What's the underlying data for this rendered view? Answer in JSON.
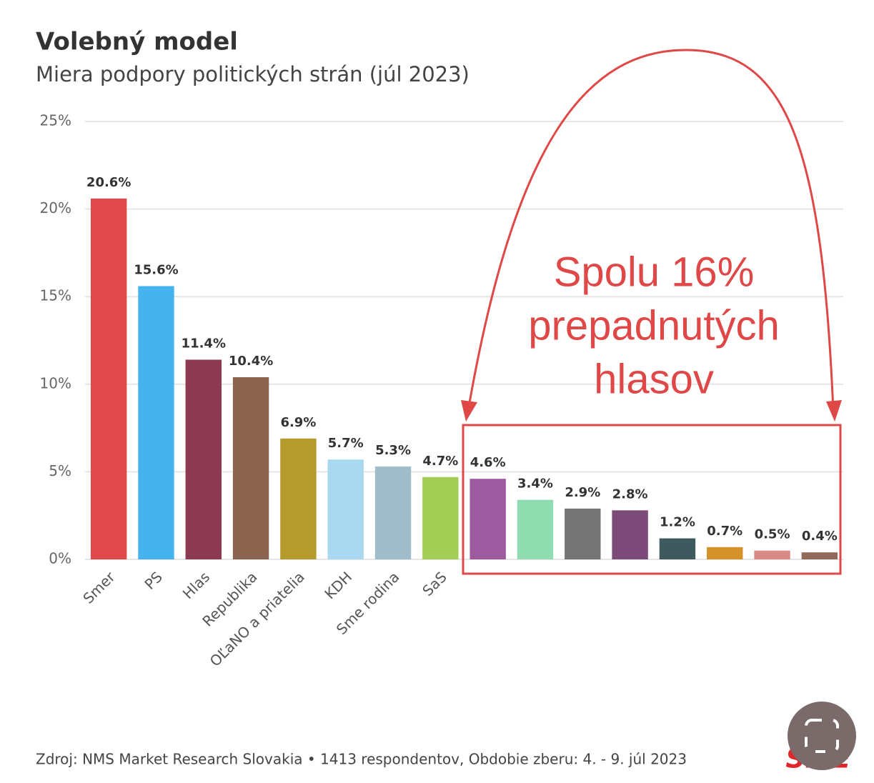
{
  "chart_data": {
    "type": "bar",
    "title": "Volebný model",
    "subtitle": "Miera podpory politických strán (júl 2023)",
    "categories": [
      "Smer",
      "PS",
      "Hlas",
      "Republika",
      "OĽaNO a priatelia",
      "KDH",
      "Sme rodina",
      "SaS",
      null,
      null,
      null,
      null,
      null,
      null,
      null,
      null
    ],
    "values": [
      20.6,
      15.6,
      11.4,
      10.4,
      6.9,
      5.7,
      5.3,
      4.7,
      4.6,
      3.4,
      2.9,
      2.8,
      1.2,
      0.7,
      0.5,
      0.4
    ],
    "value_labels": [
      "20.6%",
      "15.6%",
      "11.4%",
      "10.4%",
      "6.9%",
      "5.7%",
      "5.3%",
      "4.7%",
      "4.6%",
      "3.4%",
      "2.9%",
      "2.8%",
      "1.2%",
      "0.7%",
      "0.5%",
      "0.4%"
    ],
    "colors": [
      "#e0494b",
      "#45b4ee",
      "#8b3a52",
      "#8b6450",
      "#b59a2c",
      "#a9d8f0",
      "#9fbccb",
      "#a4cd55",
      "#9e5a9e",
      "#8fdcb0",
      "#747474",
      "#7b4a78",
      "#3f5a5e",
      "#d5912a",
      "#d98a87",
      "#8f6a5a"
    ],
    "ylim": [
      0,
      25
    ],
    "yticks": [
      {
        "value": 0,
        "label": "0%"
      },
      {
        "value": 5,
        "label": "5%"
      },
      {
        "value": 10,
        "label": "10%"
      },
      {
        "value": 15,
        "label": "15%"
      },
      {
        "value": 20,
        "label": "20%"
      },
      {
        "value": 25,
        "label": "25%"
      }
    ],
    "grid": true,
    "annotation": [
      "Spolu 16%",
      "prepadnutých",
      "hlasov"
    ],
    "source": "Zdroj: NMS Market Research Slovakia • 1413 respondentov, Obdobie zberu: 4. - 9. júl 2023",
    "logo": "SME"
  }
}
